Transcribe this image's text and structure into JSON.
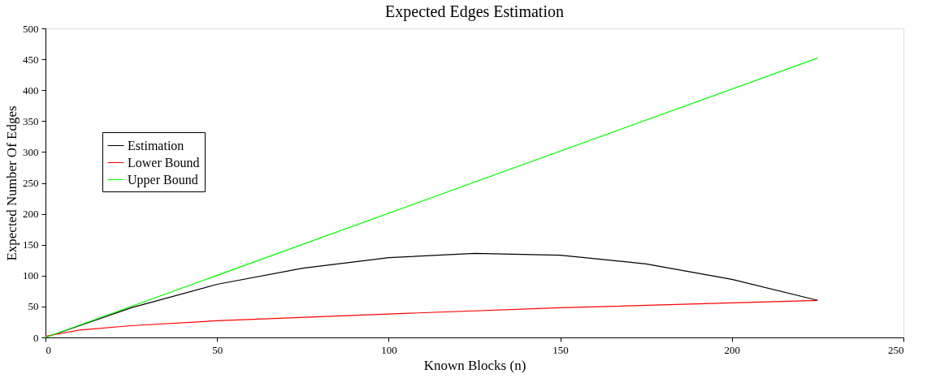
{
  "chart_data": {
    "type": "line",
    "title": "Expected Edges Estimation",
    "xlabel": "Known Blocks (n)",
    "ylabel": "Expected Number Of Edges",
    "xlim": [
      0,
      250
    ],
    "ylim": [
      0,
      500
    ],
    "xticks": [
      0,
      50,
      100,
      150,
      200,
      250
    ],
    "yticks": [
      0,
      50,
      100,
      150,
      200,
      250,
      300,
      350,
      400,
      450,
      500
    ],
    "grid": false,
    "legend": "left",
    "marker": "none",
    "line_style": "solid",
    "series": [
      {
        "name": "Estimation",
        "color": "#000000",
        "x": [
          0,
          25,
          50,
          75,
          100,
          125,
          150,
          175,
          200,
          225
        ],
        "values": [
          0,
          48,
          86,
          112,
          129,
          136,
          133,
          119,
          94,
          60
        ]
      },
      {
        "name": "Lower Bound",
        "color": "#ff0000",
        "x": [
          0,
          10,
          25,
          50,
          100,
          150,
          200,
          225
        ],
        "values": [
          2,
          12,
          19,
          27,
          38,
          48,
          56,
          60
        ]
      },
      {
        "name": "Upper Bound",
        "color": "#00ff00",
        "x": [
          0,
          225
        ],
        "values": [
          0,
          452
        ]
      }
    ]
  }
}
